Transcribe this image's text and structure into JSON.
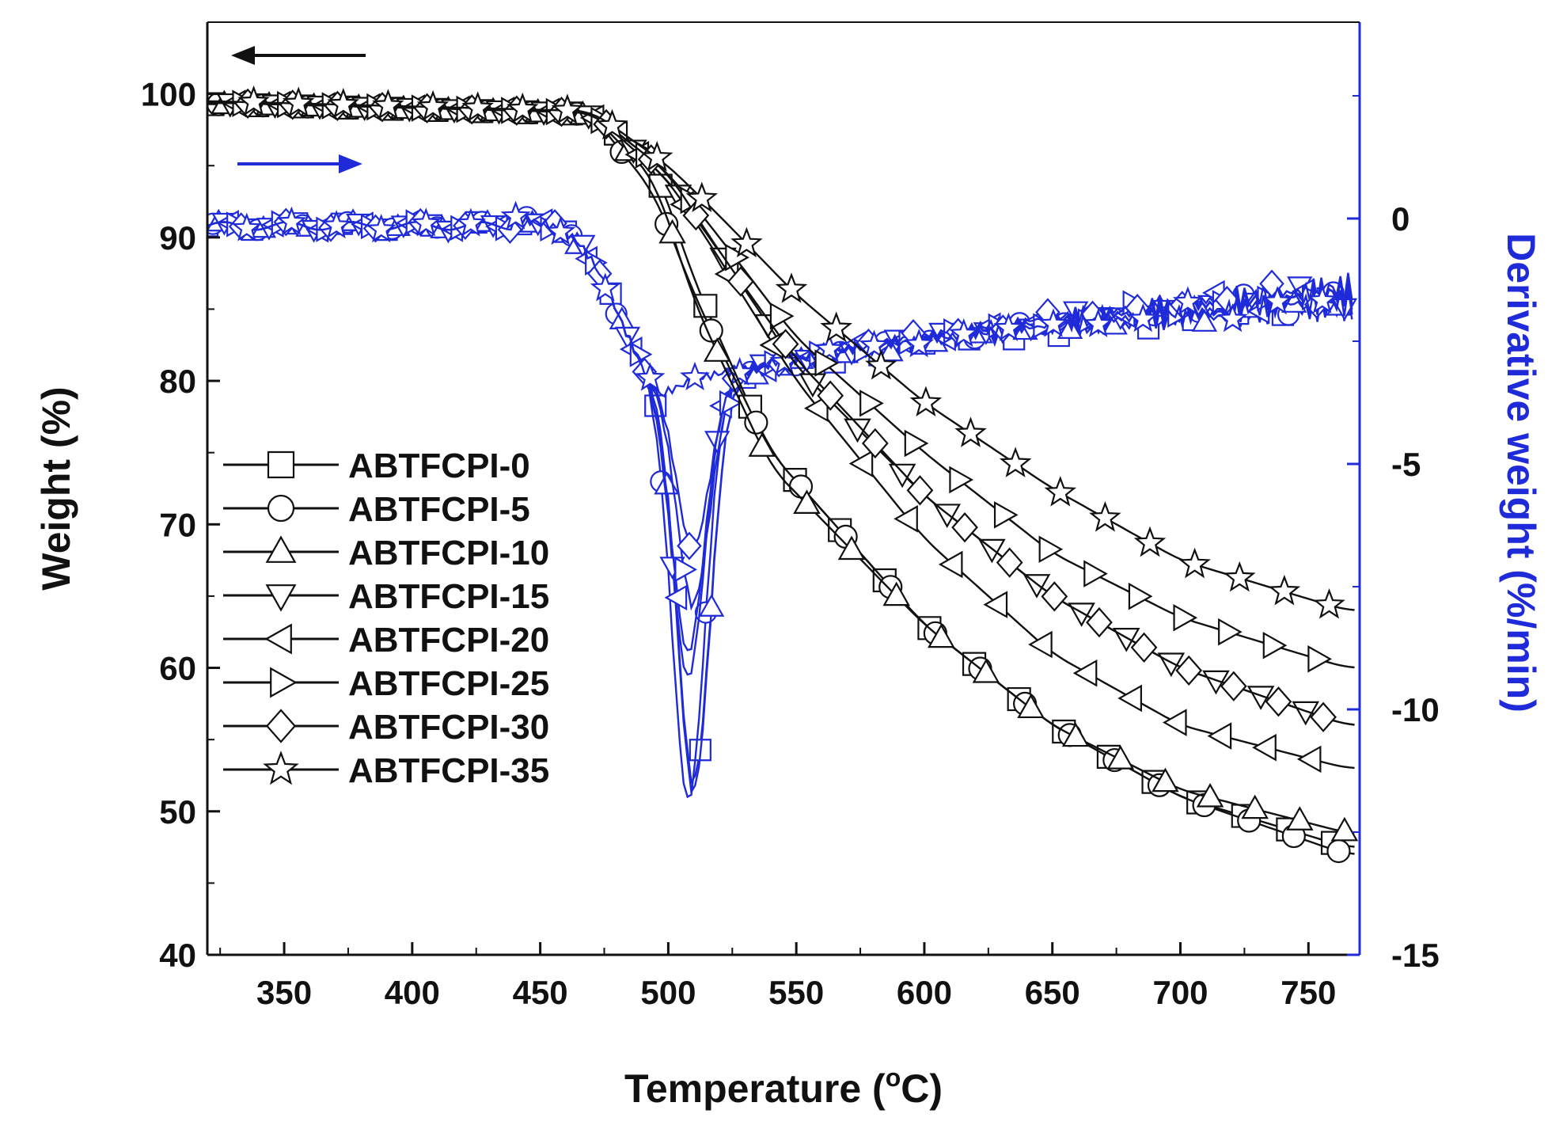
{
  "chart_data": {
    "type": "line",
    "title": "",
    "xlabel": "Temperature (°C)",
    "xlabel_parts": {
      "pre": "Temperature (",
      "sup": "o",
      "post": "C)"
    },
    "ylabel_left": "Weight (%)",
    "ylabel_right": "Derivative weight (%/min)",
    "xlim": [
      320,
      770
    ],
    "ylim_left": [
      40,
      105
    ],
    "ylim_right": [
      -15,
      4
    ],
    "x_ticks": [
      350,
      400,
      450,
      500,
      550,
      600,
      650,
      700,
      750
    ],
    "y_ticks_left": [
      40,
      50,
      60,
      70,
      80,
      90,
      100
    ],
    "y_ticks_right": [
      -15,
      -10,
      -5,
      0
    ],
    "colors": {
      "weight": "#111111",
      "derivative": "#1f2ad8",
      "right_axis": "#1f2ad8"
    },
    "legend_position": "center-left",
    "annotations": [
      {
        "type": "arrow",
        "direction": "left",
        "series": "weight",
        "meaning": "left axis"
      },
      {
        "type": "arrow",
        "direction": "right",
        "series": "derivative",
        "meaning": "right axis"
      }
    ],
    "series": [
      {
        "name": "ABTFCPI-0",
        "marker": "square",
        "onset": 498,
        "w_end": 47.5,
        "w_pts": [
          [
            320,
            99.3
          ],
          [
            470,
            98.6
          ],
          [
            495,
            95
          ],
          [
            510,
            87
          ],
          [
            540,
            75
          ],
          [
            600,
            63
          ],
          [
            650,
            56
          ],
          [
            700,
            51
          ],
          [
            765,
            47.5
          ]
        ],
        "d_peak_x": 510,
        "d_peak": -11.6,
        "d_end": -1.8
      },
      {
        "name": "ABTFCPI-5",
        "marker": "circle",
        "onset": 496,
        "w_end": 47.0,
        "w_pts": [
          [
            320,
            99.3
          ],
          [
            470,
            98.6
          ],
          [
            495,
            93
          ],
          [
            510,
            86
          ],
          [
            540,
            75
          ],
          [
            600,
            63
          ],
          [
            650,
            56
          ],
          [
            700,
            51
          ],
          [
            765,
            47
          ]
        ],
        "d_peak_x": 508,
        "d_peak": -12.0,
        "d_end": -1.6
      },
      {
        "name": "ABTFCPI-10",
        "marker": "triangle-up",
        "onset": 498,
        "w_end": 48.5,
        "w_pts": [
          [
            320,
            99.3
          ],
          [
            470,
            98.6
          ],
          [
            495,
            94
          ],
          [
            510,
            85.5
          ],
          [
            540,
            74
          ],
          [
            600,
            63
          ],
          [
            650,
            56
          ],
          [
            700,
            51.5
          ],
          [
            765,
            48.5
          ]
        ],
        "d_peak_x": 510,
        "d_peak": -11.8,
        "d_end": -1.7
      },
      {
        "name": "ABTFCPI-15",
        "marker": "triangle-down",
        "onset": 500,
        "w_end": 56.0,
        "w_pts": [
          [
            320,
            99.4
          ],
          [
            470,
            98.7
          ],
          [
            500,
            94
          ],
          [
            520,
            89
          ],
          [
            550,
            81
          ],
          [
            600,
            72
          ],
          [
            650,
            65
          ],
          [
            700,
            60
          ],
          [
            765,
            56
          ]
        ],
        "d_peak_x": 508,
        "d_peak": -9.5,
        "d_end": -1.5
      },
      {
        "name": "ABTFCPI-20",
        "marker": "triangle-left",
        "onset": 500,
        "w_end": 53.0,
        "w_pts": [
          [
            320,
            99.4
          ],
          [
            470,
            98.7
          ],
          [
            500,
            94
          ],
          [
            520,
            88.5
          ],
          [
            550,
            80
          ],
          [
            600,
            69
          ],
          [
            650,
            61
          ],
          [
            700,
            56
          ],
          [
            765,
            53
          ]
        ],
        "d_peak_x": 508,
        "d_peak": -9.0,
        "d_end": -1.5
      },
      {
        "name": "ABTFCPI-25",
        "marker": "triangle-right",
        "onset": 500,
        "w_end": 60.0,
        "w_pts": [
          [
            320,
            99.4
          ],
          [
            470,
            98.7
          ],
          [
            500,
            94.5
          ],
          [
            520,
            90
          ],
          [
            550,
            83
          ],
          [
            600,
            75
          ],
          [
            650,
            68
          ],
          [
            700,
            63.5
          ],
          [
            765,
            60
          ]
        ],
        "d_peak_x": 510,
        "d_peak": -8.0,
        "d_end": -1.5
      },
      {
        "name": "ABTFCPI-30",
        "marker": "diamond",
        "onset": 500,
        "w_end": 56.0,
        "w_pts": [
          [
            320,
            99.4
          ],
          [
            470,
            98.7
          ],
          [
            500,
            94.5
          ],
          [
            520,
            89
          ],
          [
            550,
            81.5
          ],
          [
            600,
            72
          ],
          [
            650,
            65
          ],
          [
            700,
            60
          ],
          [
            765,
            56
          ]
        ],
        "d_peak_x": 510,
        "d_peak": -6.9,
        "d_end": -1.4
      },
      {
        "name": "ABTFCPI-35",
        "marker": "star",
        "onset": 500,
        "w_end": 64.0,
        "w_pts": [
          [
            320,
            99.5
          ],
          [
            470,
            98.8
          ],
          [
            500,
            95
          ],
          [
            520,
            91.5
          ],
          [
            550,
            86
          ],
          [
            600,
            78.5
          ],
          [
            650,
            72.5
          ],
          [
            700,
            67.5
          ],
          [
            765,
            64
          ]
        ],
        "d_peak_x": 498,
        "d_peak": -4.0,
        "d_end": -1.7
      }
    ]
  }
}
